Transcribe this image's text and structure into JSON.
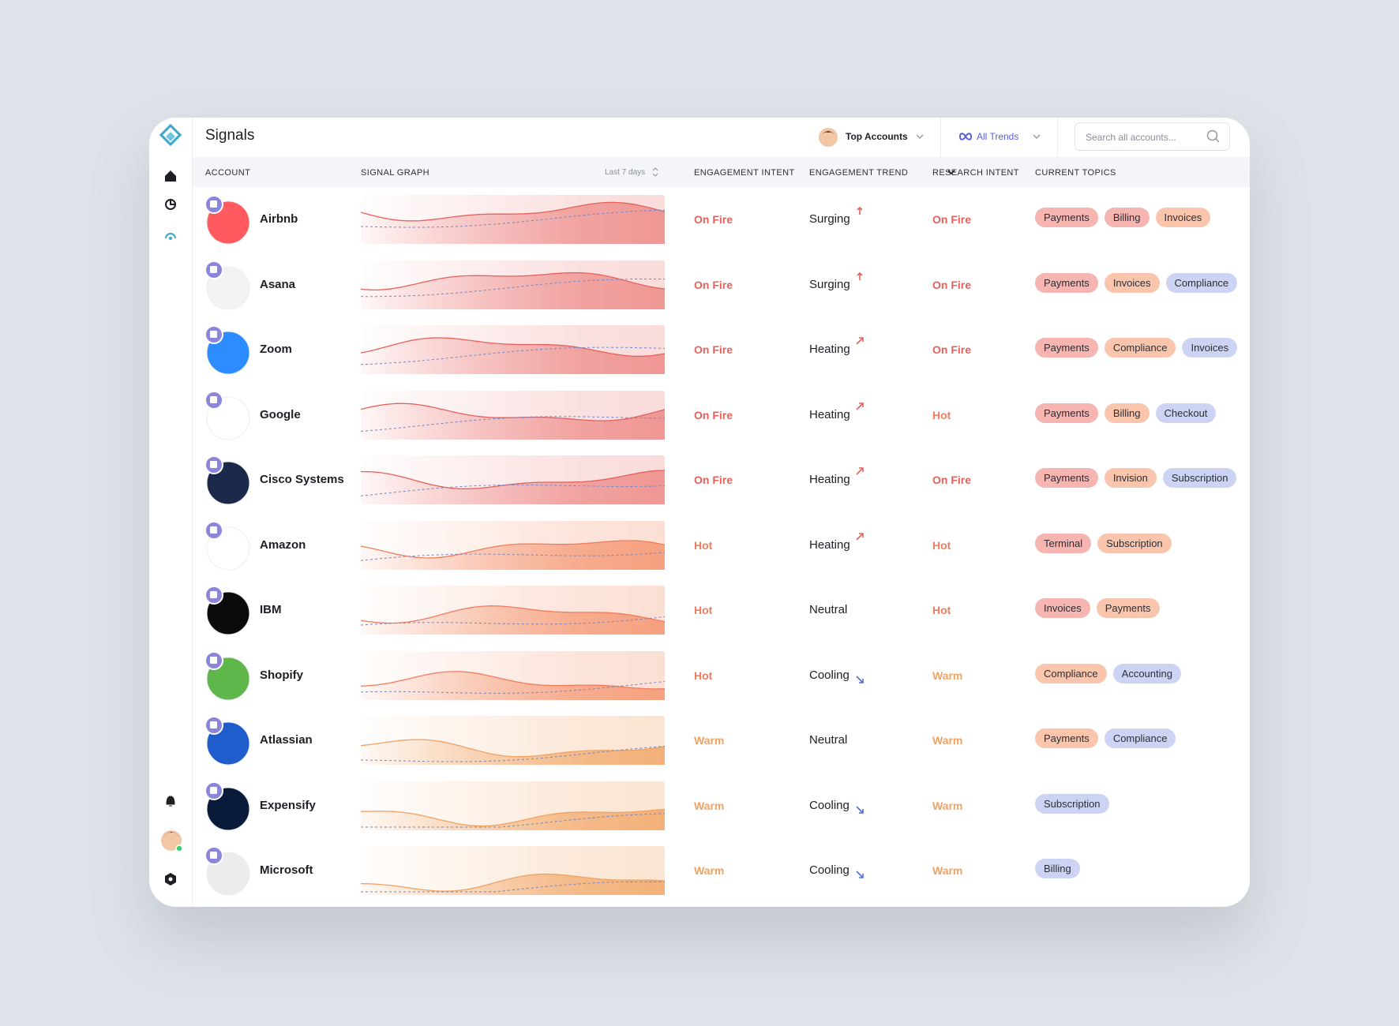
{
  "header": {
    "title": "Signals",
    "account_filter": "Top Accounts",
    "trend_filter": "All Trends",
    "search_placeholder": "Search all accounts..."
  },
  "table": {
    "columns": [
      "ACCOUNT",
      "SIGNAL GRAPH",
      "ENGAGEMENT INTENT",
      "ENGAGEMENT TREND",
      "RESEARCH INTENT",
      "CURRENT TOPICS"
    ],
    "range": "Last 7 days",
    "rows": [
      {
        "account": "Airbnb",
        "logo_color": "#ff5a5f",
        "engagement_intent": "On Fire",
        "engagement_trend": "Surging",
        "research_intent": "On Fire",
        "topics": [
          {
            "label": "Payments",
            "color": "#f6b5b0"
          },
          {
            "label": "Billing",
            "color": "#f6b5b0"
          },
          {
            "label": "Invoices",
            "color": "#f9c6ad"
          }
        ]
      },
      {
        "account": "Asana",
        "logo_color": "#f3f3f5",
        "engagement_intent": "On Fire",
        "engagement_trend": "Surging",
        "research_intent": "On Fire",
        "topics": [
          {
            "label": "Payments",
            "color": "#f6b5b0"
          },
          {
            "label": "Invoices",
            "color": "#f9c6ad"
          },
          {
            "label": "Compliance",
            "color": "#cdd3f3"
          }
        ]
      },
      {
        "account": "Zoom",
        "logo_color": "#2d8cff",
        "engagement_intent": "On Fire",
        "engagement_trend": "Heating",
        "research_intent": "On Fire",
        "topics": [
          {
            "label": "Payments",
            "color": "#f6b5b0"
          },
          {
            "label": "Compliance",
            "color": "#f9c6ad"
          },
          {
            "label": "Invoices",
            "color": "#cdd3f3"
          }
        ]
      },
      {
        "account": "Google",
        "logo_color": "#ffffff",
        "engagement_intent": "On Fire",
        "engagement_trend": "Heating",
        "research_intent": "Hot",
        "topics": [
          {
            "label": "Payments",
            "color": "#f6b5b0"
          },
          {
            "label": "Billing",
            "color": "#f9c6ad"
          },
          {
            "label": "Checkout",
            "color": "#cdd3f3"
          }
        ]
      },
      {
        "account": "Cisco Systems",
        "logo_color": "#1b2a4a",
        "engagement_intent": "On Fire",
        "engagement_trend": "Heating",
        "research_intent": "On Fire",
        "topics": [
          {
            "label": "Payments",
            "color": "#f6b5b0"
          },
          {
            "label": "Invision",
            "color": "#f9c6ad"
          },
          {
            "label": "Subscription",
            "color": "#cdd3f3"
          }
        ]
      },
      {
        "account": "Amazon",
        "logo_color": "#ffffff",
        "engagement_intent": "Hot",
        "engagement_trend": "Heating",
        "research_intent": "Hot",
        "topics": [
          {
            "label": "Terminal",
            "color": "#f6b5b0"
          },
          {
            "label": "Subscription",
            "color": "#f9c6ad"
          }
        ]
      },
      {
        "account": "IBM",
        "logo_color": "#0b0b0b",
        "engagement_intent": "Hot",
        "engagement_trend": "Neutral",
        "research_intent": "Hot",
        "topics": [
          {
            "label": "Invoices",
            "color": "#f6b5b0"
          },
          {
            "label": "Payments",
            "color": "#f9c6ad"
          }
        ]
      },
      {
        "account": "Shopify",
        "logo_color": "#5fb74b",
        "engagement_intent": "Hot",
        "engagement_trend": "Cooling",
        "research_intent": "Warm",
        "topics": [
          {
            "label": "Compliance",
            "color": "#f9c6ad"
          },
          {
            "label": "Accounting",
            "color": "#cdd3f3"
          }
        ]
      },
      {
        "account": "Atlassian",
        "logo_color": "#1f5ccc",
        "engagement_intent": "Warm",
        "engagement_trend": "Neutral",
        "research_intent": "Warm",
        "topics": [
          {
            "label": "Payments",
            "color": "#f9c6ad"
          },
          {
            "label": "Compliance",
            "color": "#cdd3f3"
          }
        ]
      },
      {
        "account": "Expensify",
        "logo_color": "#0a1a3a",
        "engagement_intent": "Warm",
        "engagement_trend": "Cooling",
        "research_intent": "Warm",
        "topics": [
          {
            "label": "Subscription",
            "color": "#cdd3f3"
          }
        ]
      },
      {
        "account": "Microsoft",
        "logo_color": "#ececee",
        "engagement_intent": "Warm",
        "engagement_trend": "Cooling",
        "research_intent": "Warm",
        "topics": [
          {
            "label": "Billing",
            "color": "#cdd3f3"
          }
        ]
      }
    ]
  }
}
